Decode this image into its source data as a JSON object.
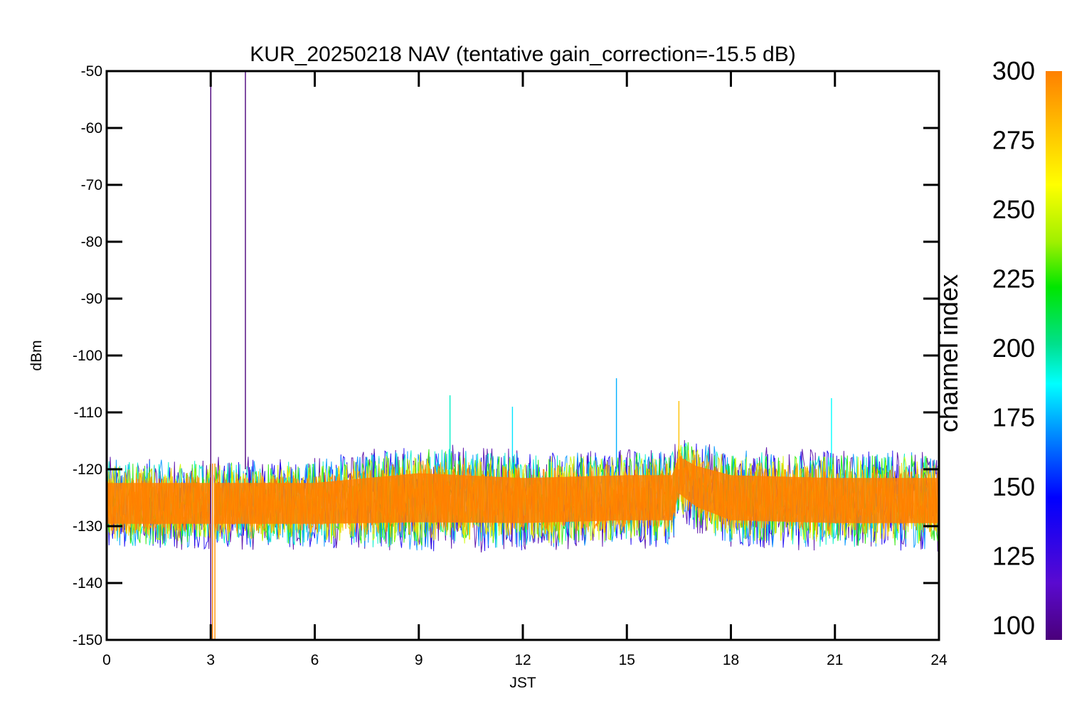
{
  "chart_data": {
    "type": "line",
    "title": "KUR_20250218 NAV (tentative gain_correction=-15.5 dB)",
    "xlabel": "JST",
    "ylabel": "dBm",
    "xlim": [
      0,
      24
    ],
    "ylim": [
      -150,
      -50
    ],
    "xticks": [
      0,
      3,
      6,
      9,
      12,
      15,
      18,
      21,
      24
    ],
    "yticks": [
      -50,
      -60,
      -70,
      -80,
      -90,
      -100,
      -110,
      -120,
      -130,
      -140,
      -150
    ],
    "grid": false,
    "series_description": "many overlapping channel traces (channel index 100-300), colored by channel index",
    "band": {
      "x": [
        0,
        3,
        6,
        9,
        12,
        15,
        16.3,
        16.5,
        17,
        18,
        21,
        24
      ],
      "center": [
        -126,
        -126,
        -126,
        -125,
        -125.5,
        -125,
        -125,
        -121,
        -123,
        -125,
        -125.5,
        -125.5
      ],
      "half_width": [
        5,
        5,
        5,
        6,
        5.5,
        5.5,
        5.5,
        4.5,
        5,
        5.5,
        5.5,
        5.5
      ]
    },
    "outer_spread": {
      "upper": -117,
      "lower": -134
    },
    "spikes": [
      {
        "x": 3.0,
        "y_top": -51.5,
        "y_bottom": -150,
        "channel": 100
      },
      {
        "x": 4.0,
        "y_top": -50,
        "y_bottom": -120,
        "channel": 100
      },
      {
        "x": 3.05,
        "y_top": -119,
        "y_bottom": -150,
        "channel": 300
      },
      {
        "x": 3.12,
        "y_top": -119,
        "y_bottom": -150,
        "channel": 295
      },
      {
        "x": 14.7,
        "y_top": -104,
        "y_bottom": -120,
        "channel": 165
      },
      {
        "x": 9.9,
        "y_top": -107,
        "y_bottom": -120,
        "channel": 190
      },
      {
        "x": 11.7,
        "y_top": -109,
        "y_bottom": -120,
        "channel": 175
      },
      {
        "x": 20.9,
        "y_top": -107.5,
        "y_bottom": -120,
        "channel": 180
      },
      {
        "x": 16.5,
        "y_top": -108,
        "y_bottom": -120,
        "channel": 280
      }
    ],
    "gap": {
      "x": 3.05,
      "y_top": -118,
      "y_bottom": -133
    },
    "colorbar": {
      "label": "channel index",
      "range": [
        100,
        300
      ],
      "ticks": [
        300,
        275,
        250,
        225,
        200,
        175,
        150,
        125,
        100
      ],
      "colormap": [
        "#4a007a",
        "#5a0ad0",
        "#0000ff",
        "#0096ff",
        "#00ffff",
        "#00e08c",
        "#00e600",
        "#a0f000",
        "#ffff00",
        "#ffc000",
        "#ff8000"
      ]
    }
  }
}
